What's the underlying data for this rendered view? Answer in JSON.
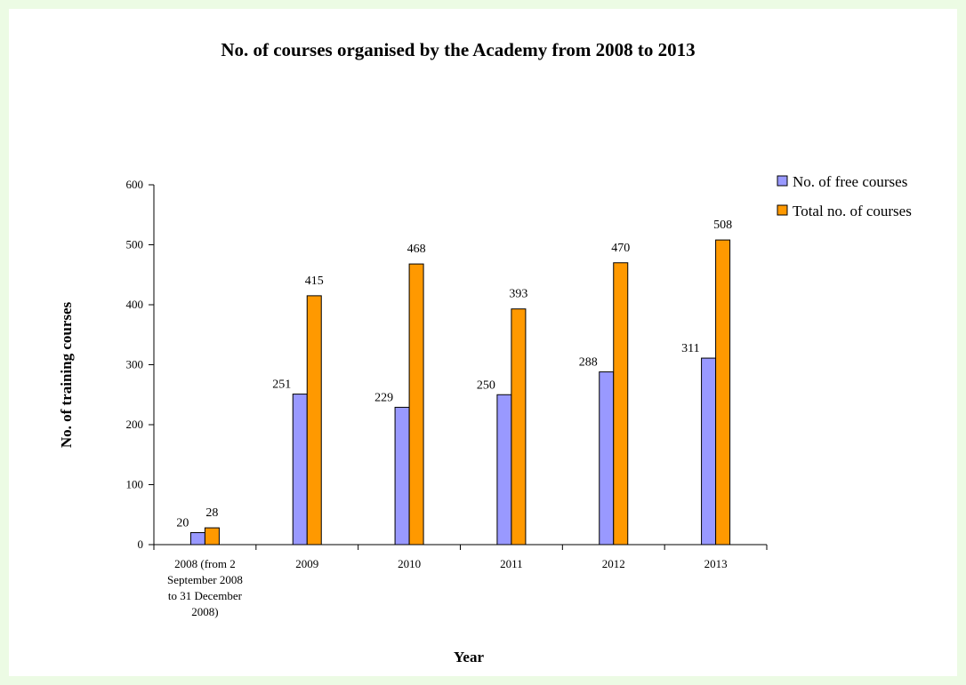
{
  "chart_data": {
    "type": "bar",
    "title": "No. of courses organised by the Academy from 2008 to 2013",
    "xlabel": "Year",
    "ylabel": "No. of training courses",
    "ylim": [
      0,
      600
    ],
    "yticks": [
      0,
      100,
      200,
      300,
      400,
      500,
      600
    ],
    "categories": [
      [
        "2008 (from 2",
        "September 2008",
        "to 31 December",
        "2008)"
      ],
      [
        "2009"
      ],
      [
        "2010"
      ],
      [
        "2011"
      ],
      [
        "2012"
      ],
      [
        "2013"
      ]
    ],
    "series": [
      {
        "name": "No. of free courses",
        "color": "#9999ff",
        "values": [
          20,
          251,
          229,
          250,
          288,
          311
        ]
      },
      {
        "name": "Total no. of courses",
        "color": "#ff9900",
        "values": [
          28,
          415,
          468,
          393,
          470,
          508
        ]
      }
    ],
    "legend_position": "top-right",
    "grid": false
  }
}
